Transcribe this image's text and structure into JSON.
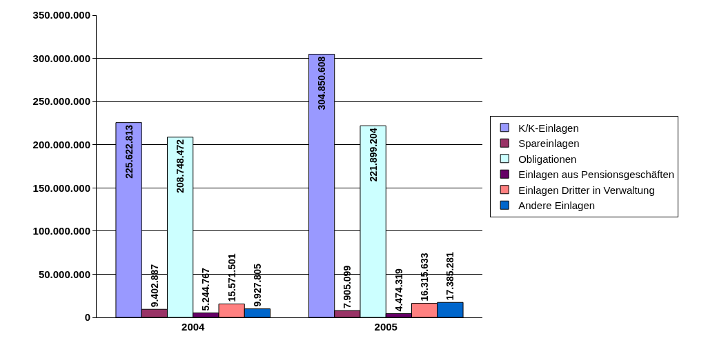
{
  "chart_data": {
    "type": "bar",
    "categories": [
      "2004",
      "2005"
    ],
    "series": [
      {
        "name": "K/K-Einlagen",
        "color": "#9999ff",
        "values": [
          225622813,
          304850608
        ],
        "value_labels": [
          "225.622.813",
          "304.850.608"
        ]
      },
      {
        "name": "Spareinlagen",
        "color": "#993366",
        "values": [
          9402887,
          7905099
        ],
        "value_labels": [
          "9.402.887",
          "7.905.099"
        ]
      },
      {
        "name": "Obligationen",
        "color": "#ccffff",
        "values": [
          208748472,
          221899204
        ],
        "value_labels": [
          "208.748.472",
          "221.899.204"
        ]
      },
      {
        "name": "Einlagen aus Pensionsgeschäften",
        "color": "#660066",
        "values": [
          5244767,
          4474319
        ],
        "value_labels": [
          "5.244.767",
          "4.474.319"
        ]
      },
      {
        "name": "Einlagen Dritter in Verwaltung",
        "color": "#ff8080",
        "values": [
          15571501,
          16315633
        ],
        "value_labels": [
          "15.571.501",
          "16.315.633"
        ]
      },
      {
        "name": "Andere Einlagen",
        "color": "#0066cc",
        "values": [
          9927805,
          17385281
        ],
        "value_labels": [
          "9.927.805",
          "17.385.281"
        ]
      }
    ],
    "ylim": [
      0,
      350000000
    ],
    "yticks": [
      {
        "value": 0,
        "label": "0"
      },
      {
        "value": 50000000,
        "label": "50.000.000"
      },
      {
        "value": 100000000,
        "label": "100.000.000"
      },
      {
        "value": 150000000,
        "label": "150.000.000"
      },
      {
        "value": 200000000,
        "label": "200.000.000"
      },
      {
        "value": 250000000,
        "label": "250.000.000"
      },
      {
        "value": 300000000,
        "label": "300.000.000"
      },
      {
        "value": 350000000,
        "label": "350.000.000"
      }
    ],
    "grid": "y",
    "legend": "right"
  }
}
